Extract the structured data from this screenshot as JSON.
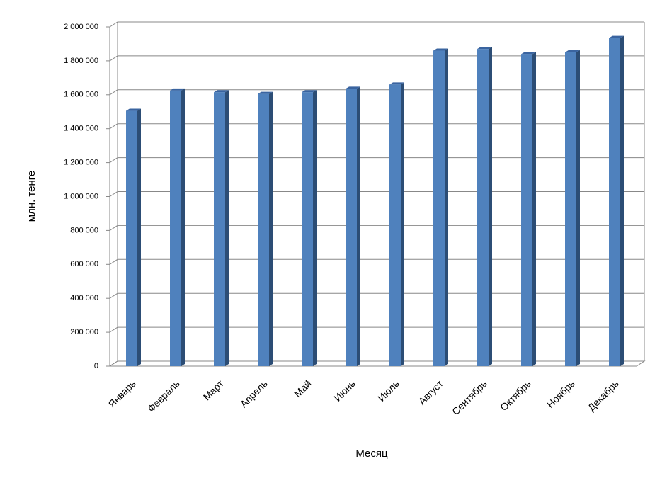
{
  "chart_data": {
    "type": "bar",
    "x_label": "Месяц",
    "y_label": "млн. тенге",
    "categories": [
      "Январь",
      "Февраль",
      "Март",
      "Апрель",
      "Май",
      "Июнь",
      "Июль",
      "Август",
      "Сентябрь",
      "Октябрь",
      "Ноябрь",
      "Декабрь"
    ],
    "values": [
      1505000,
      1625000,
      1615000,
      1605000,
      1615000,
      1635000,
      1660000,
      1860000,
      1870000,
      1840000,
      1850000,
      1935000
    ],
    "color": "#4f81bd",
    "ylim": [
      0,
      2000000
    ],
    "yticks": [
      {
        "value": 0,
        "label": "0"
      },
      {
        "value": 200000,
        "label": "200 000"
      },
      {
        "value": 400000,
        "label": "400 000"
      },
      {
        "value": 600000,
        "label": "600 000"
      },
      {
        "value": 800000,
        "label": "800 000"
      },
      {
        "value": 1000000,
        "label": "1 000 000"
      },
      {
        "value": 1200000,
        "label": "1 200 000"
      },
      {
        "value": 1400000,
        "label": "1 400 000"
      },
      {
        "value": 1600000,
        "label": "1 600 000"
      },
      {
        "value": 1800000,
        "label": "1 800 000"
      },
      {
        "value": 2000000,
        "label": "2 000 000"
      }
    ],
    "grid": true
  }
}
